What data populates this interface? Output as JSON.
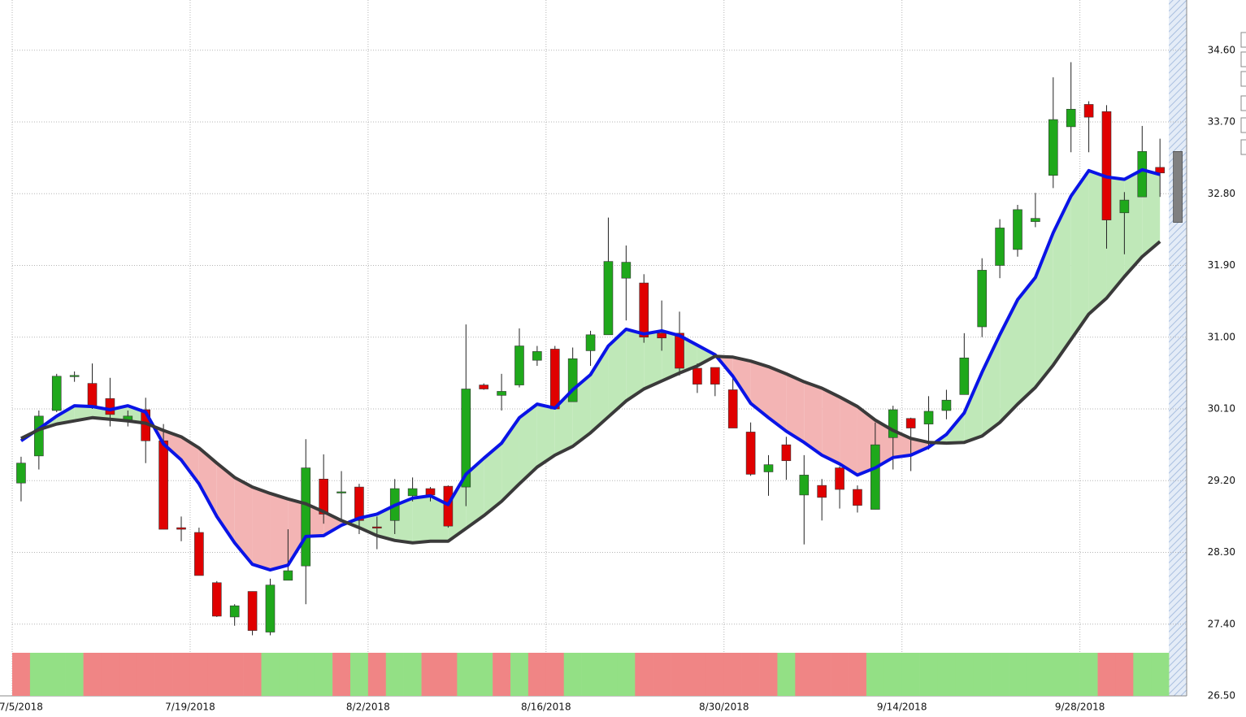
{
  "chart_data": {
    "type": "candlestick",
    "categories": [
      "7/5/2018",
      null,
      null,
      null,
      null,
      null,
      null,
      null,
      null,
      null,
      "7/19/2018",
      null,
      null,
      null,
      null,
      null,
      null,
      null,
      null,
      null,
      "8/2/2018",
      null,
      null,
      null,
      null,
      null,
      null,
      null,
      null,
      null,
      "8/16/2018",
      null,
      null,
      null,
      null,
      null,
      null,
      null,
      null,
      null,
      "8/30/2018",
      null,
      null,
      null,
      null,
      null,
      null,
      null,
      null,
      null,
      "9/14/2018",
      null,
      null,
      null,
      null,
      null,
      null,
      null,
      null,
      null,
      "9/28/2018",
      null,
      null,
      null,
      null,
      null
    ],
    "ohlc": {
      "open": [
        29.17,
        29.51,
        30.08,
        30.51,
        30.42,
        30.23,
        29.94,
        30.09,
        29.7,
        28.61,
        28.55,
        27.92,
        27.49,
        27.81,
        27.3,
        27.95,
        28.13,
        29.22,
        29.05,
        29.12,
        28.62,
        28.7,
        29.01,
        29.1,
        29.13,
        29.12,
        30.4,
        30.27,
        30.4,
        30.71,
        30.85,
        30.19,
        30.83,
        31.03,
        31.74,
        31.68,
        31.05,
        31.05,
        30.61,
        30.62,
        30.34,
        29.81,
        29.31,
        29.65,
        29.02,
        29.14,
        29.36,
        29.09,
        28.84,
        29.74,
        29.98,
        29.91,
        30.08,
        30.28,
        31.13,
        31.9,
        32.1,
        32.45,
        33.03,
        33.64,
        33.92,
        33.83,
        32.56,
        32.76,
        33.13,
        33.33
      ],
      "high": [
        29.5,
        30.08,
        30.54,
        30.57,
        30.67,
        30.49,
        30.08,
        30.24,
        29.91,
        28.75,
        28.61,
        27.94,
        27.65,
        27.81,
        27.97,
        28.59,
        29.72,
        29.53,
        29.32,
        29.16,
        28.75,
        29.22,
        29.24,
        29.12,
        29.14,
        31.16,
        30.42,
        30.54,
        31.11,
        30.89,
        30.89,
        30.87,
        31.08,
        32.5,
        32.15,
        31.79,
        31.46,
        31.32,
        30.67,
        30.62,
        30.52,
        29.93,
        29.52,
        29.75,
        29.52,
        29.22,
        29.38,
        29.14,
        29.93,
        30.14,
        29.99,
        30.26,
        30.34,
        31.05,
        31.99,
        32.48,
        32.66,
        32.81,
        34.26,
        34.45,
        33.96,
        33.91,
        32.82,
        33.65,
        33.49,
        33.33
      ],
      "low": [
        28.94,
        29.34,
        30.06,
        30.44,
        30.1,
        29.88,
        29.88,
        29.42,
        28.59,
        28.44,
        28.01,
        27.49,
        27.38,
        27.26,
        27.26,
        27.95,
        27.65,
        28.66,
        28.7,
        28.53,
        28.34,
        28.53,
        28.94,
        28.94,
        28.61,
        28.88,
        30.34,
        30.08,
        30.37,
        30.64,
        30.1,
        30.19,
        30.64,
        31.03,
        31.21,
        30.93,
        30.83,
        30.52,
        30.3,
        30.26,
        29.86,
        29.26,
        29.01,
        29.21,
        28.4,
        28.7,
        28.85,
        28.8,
        28.84,
        29.34,
        29.32,
        29.59,
        29.97,
        30.28,
        31.0,
        31.74,
        32.01,
        32.38,
        32.87,
        33.32,
        33.32,
        32.11,
        32.04,
        32.76,
        32.76,
        32.44
      ],
      "close": [
        29.42,
        30.01,
        30.51,
        30.52,
        30.14,
        30.03,
        30.01,
        29.7,
        28.59,
        28.59,
        28.01,
        27.5,
        27.63,
        27.32,
        27.89,
        28.07,
        29.36,
        28.78,
        29.06,
        28.7,
        28.61,
        29.1,
        29.1,
        29.02,
        28.63,
        30.35,
        30.35,
        30.32,
        30.89,
        30.82,
        30.1,
        30.73,
        31.03,
        31.95,
        31.94,
        31.0,
        30.99,
        30.61,
        30.41,
        30.41,
        29.86,
        29.28,
        29.4,
        29.45,
        29.27,
        28.99,
        29.09,
        28.89,
        29.65,
        30.09,
        29.86,
        30.07,
        30.21,
        30.74,
        31.84,
        32.37,
        32.6,
        32.49,
        33.73,
        33.86,
        33.76,
        32.47,
        32.72,
        33.33,
        33.06,
        32.44
      ]
    },
    "up_color": "#1fa81b",
    "down_color": "#e00000",
    "last_candle_color": "#808080",
    "lines": [
      {
        "color": "#0a14e6",
        "values": [
          29.7,
          29.85,
          30.01,
          30.14,
          30.13,
          30.09,
          30.14,
          30.06,
          29.66,
          29.46,
          29.16,
          28.75,
          28.42,
          28.15,
          28.08,
          28.14,
          28.5,
          28.51,
          28.64,
          28.73,
          28.78,
          28.89,
          28.98,
          29.01,
          28.9,
          29.28,
          29.48,
          29.67,
          29.99,
          30.16,
          30.11,
          30.34,
          30.53,
          30.89,
          31.1,
          31.04,
          31.08,
          31.02,
          30.9,
          30.78,
          30.51,
          30.17,
          29.99,
          29.82,
          29.68,
          29.52,
          29.41,
          29.27,
          29.36,
          29.49,
          29.52,
          29.62,
          29.78,
          30.05,
          30.56,
          31.03,
          31.47,
          31.75,
          32.31,
          32.77,
          33.09,
          33.01,
          32.98,
          33.1,
          33.04,
          null
        ]
      },
      {
        "color": "#3a3a3a",
        "values": [
          29.73,
          29.84,
          29.91,
          29.95,
          29.99,
          29.97,
          29.95,
          29.92,
          29.83,
          29.75,
          29.61,
          29.42,
          29.24,
          29.12,
          29.04,
          28.97,
          28.91,
          28.81,
          28.7,
          28.61,
          28.51,
          28.45,
          28.42,
          28.44,
          28.44,
          28.6,
          28.76,
          28.94,
          29.16,
          29.37,
          29.52,
          29.63,
          29.8,
          30.0,
          30.2,
          30.35,
          30.45,
          30.55,
          30.64,
          30.76,
          30.75,
          30.7,
          30.63,
          30.54,
          30.44,
          30.36,
          30.25,
          30.13,
          29.96,
          29.83,
          29.73,
          29.68,
          29.67,
          29.68,
          29.76,
          29.93,
          30.16,
          30.37,
          30.65,
          30.97,
          31.29,
          31.49,
          31.76,
          32.01,
          32.2,
          null
        ]
      }
    ],
    "fill_up_color": "#bfe8b8",
    "fill_down_color": "#f3b4b4",
    "band_states": [
      "down",
      "up",
      "up",
      "up",
      "down",
      "down",
      "down",
      "down",
      "down",
      "down",
      "down",
      "down",
      "down",
      "down",
      "up",
      "up",
      "up",
      "up",
      "down",
      "up",
      "down",
      "up",
      "up",
      "down",
      "down",
      "up",
      "up",
      "down",
      "up",
      "down",
      "down",
      "up",
      "up",
      "up",
      "up",
      "down",
      "down",
      "down",
      "down",
      "down",
      "down",
      "down",
      "down",
      "up",
      "down",
      "down",
      "down",
      "down",
      "up",
      "up",
      "up",
      "up",
      "up",
      "up",
      "up",
      "up",
      "up",
      "up",
      "up",
      "up",
      "up",
      "down",
      "down",
      "up",
      "up",
      null
    ],
    "band_up_color": "#93e085",
    "band_down_color": "#f08585",
    "ylim": [
      26.5,
      35.23
    ],
    "yticks": [
      {
        "value": 26.5,
        "label": "26.50"
      },
      {
        "value": 27.4,
        "label": "27.40"
      },
      {
        "value": 28.3,
        "label": "28.30"
      },
      {
        "value": 29.2,
        "label": "29.20"
      },
      {
        "value": 30.1,
        "label": "30.10"
      },
      {
        "value": 31.0,
        "label": "31.00"
      },
      {
        "value": 31.9,
        "label": "31.90"
      },
      {
        "value": 32.8,
        "label": "32.80"
      },
      {
        "value": 33.7,
        "label": "33.70"
      },
      {
        "value": 34.6,
        "label": "34.60"
      }
    ],
    "grid": true
  }
}
